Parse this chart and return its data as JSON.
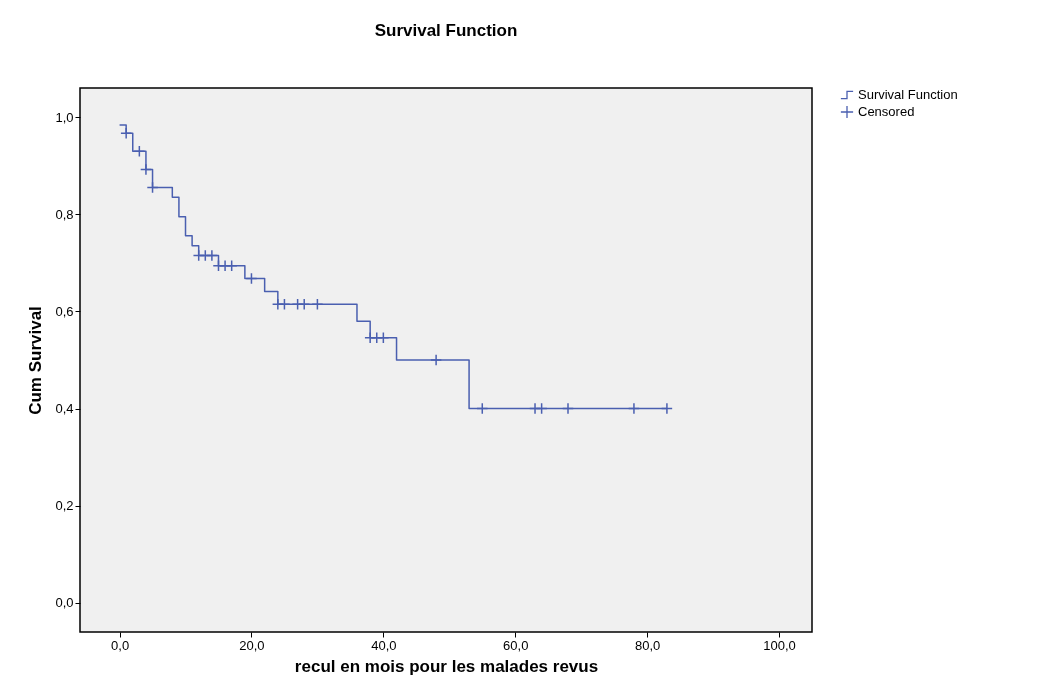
{
  "chart_data": {
    "type": "step",
    "title": "Survival Function",
    "xlabel": "recul en mois pour les malades revus",
    "ylabel": "Cum Survival",
    "xlim": [
      -6,
      105
    ],
    "ylim": [
      -0.06,
      1.06
    ],
    "xticks": [
      {
        "value": 0,
        "label": "0,0"
      },
      {
        "value": 20,
        "label": "20,0"
      },
      {
        "value": 40,
        "label": "40,0"
      },
      {
        "value": 60,
        "label": "60,0"
      },
      {
        "value": 80,
        "label": "80,0"
      },
      {
        "value": 100,
        "label": "100,0"
      }
    ],
    "yticks": [
      {
        "value": 0,
        "label": "0,0"
      },
      {
        "value": 0.2,
        "label": "0,2"
      },
      {
        "value": 0.4,
        "label": "0,4"
      },
      {
        "value": 0.6,
        "label": "0,6"
      },
      {
        "value": 0.8,
        "label": "0,8"
      },
      {
        "value": 1,
        "label": "1,0"
      }
    ],
    "grid": false,
    "legend": "top right",
    "series": [
      {
        "name": "Survival Function",
        "color": "#4a5fb0",
        "x": [
          0,
          1,
          2,
          4,
          5,
          8,
          9,
          10,
          11,
          12,
          15,
          19,
          22,
          24,
          36,
          38,
          42,
          53,
          83
        ],
        "values": [
          0.984,
          0.967,
          0.93,
          0.892,
          0.855,
          0.835,
          0.795,
          0.756,
          0.735,
          0.715,
          0.694,
          0.668,
          0.641,
          0.615,
          0.58,
          0.546,
          0.5,
          0.4,
          0.4
        ]
      },
      {
        "name": "Censored",
        "type": "scatter",
        "marker": "cross",
        "color": "#4a5fb0",
        "x": [
          1,
          3,
          4,
          5,
          12,
          13,
          14,
          15,
          16,
          17,
          20,
          24,
          25,
          27,
          28,
          30,
          38,
          39,
          40,
          48,
          55,
          63,
          64,
          68,
          78,
          83
        ],
        "values": [
          0.967,
          0.93,
          0.892,
          0.855,
          0.715,
          0.715,
          0.715,
          0.694,
          0.694,
          0.694,
          0.668,
          0.615,
          0.615,
          0.615,
          0.615,
          0.615,
          0.546,
          0.546,
          0.546,
          0.5,
          0.4,
          0.4,
          0.4,
          0.4,
          0.4,
          0.4
        ]
      }
    ]
  }
}
